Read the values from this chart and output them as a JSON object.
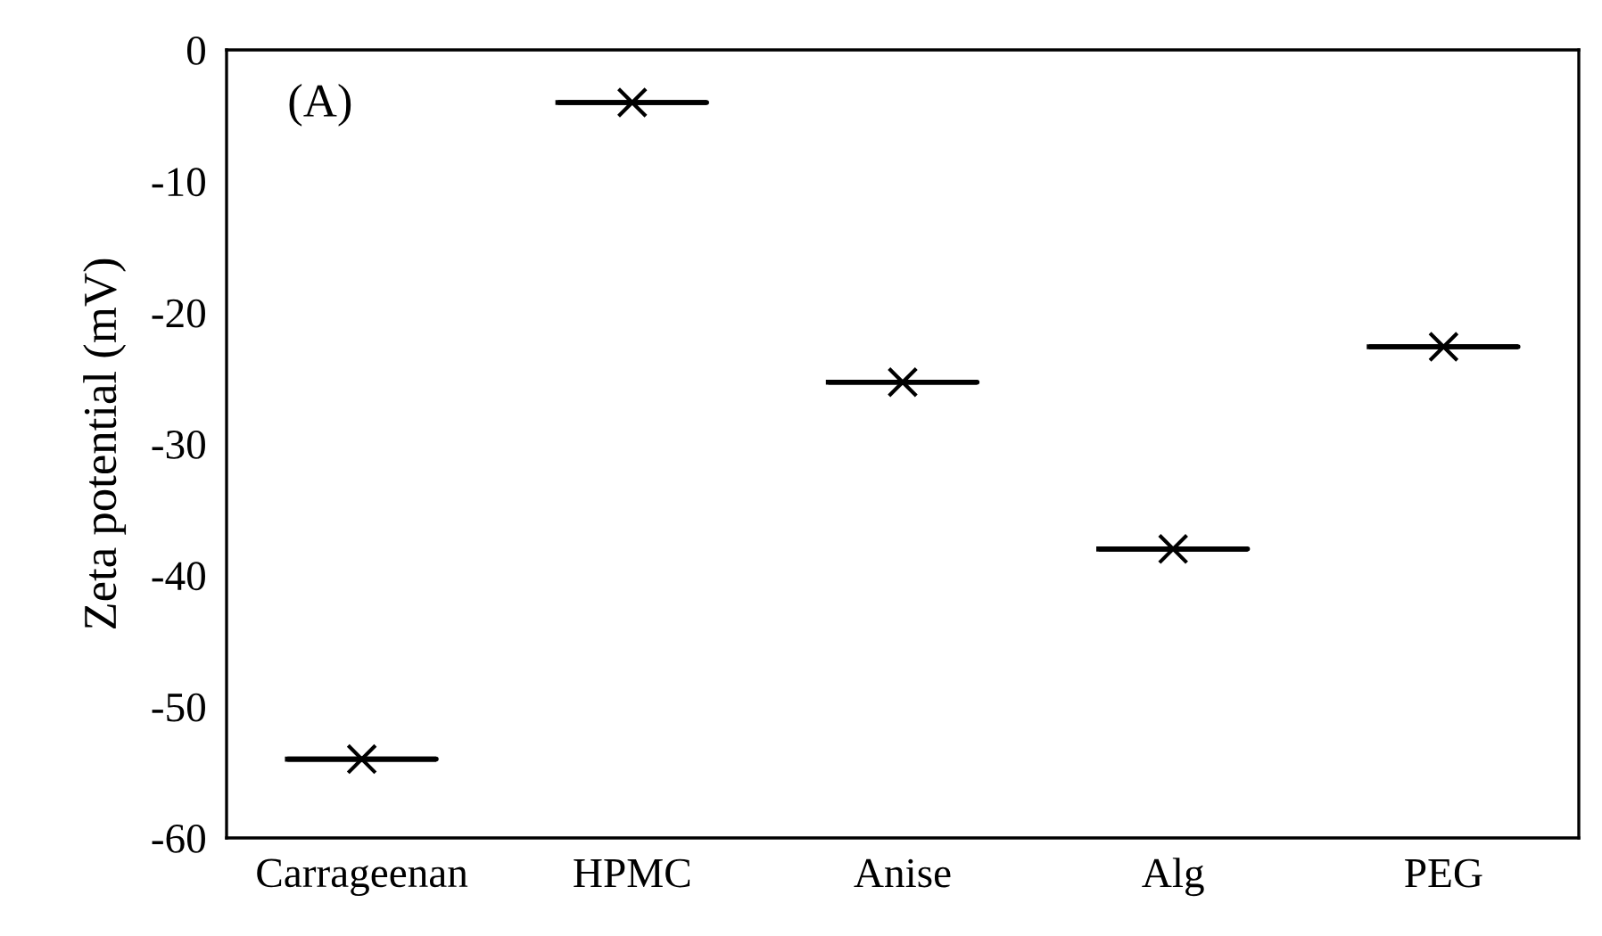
{
  "chart_data": {
    "type": "box",
    "ylabel": "Zeta potential (mV)",
    "annotations": [
      "(A)"
    ],
    "categories": [
      "Carrageenan",
      "HPMC",
      "Anise",
      "Alg",
      "PEG"
    ],
    "boxes": [
      {
        "low": -54,
        "q1": -54,
        "median": -54,
        "q3": -54,
        "high": -54,
        "mean": -54
      },
      {
        "low": -4,
        "q1": -4,
        "median": -4,
        "q3": -4,
        "high": -4,
        "mean": -4
      },
      {
        "low": -25.3,
        "q1": -25.3,
        "median": -25.3,
        "q3": -25.3,
        "high": -25.3,
        "mean": -25.3
      },
      {
        "low": -38,
        "q1": -38,
        "median": -38,
        "q3": -38,
        "high": -38,
        "mean": -38
      },
      {
        "low": -22.6,
        "q1": -22.6,
        "median": -22.6,
        "q3": -22.6,
        "high": -22.6,
        "mean": -22.6
      }
    ],
    "color": "#000000",
    "marker": "cross",
    "ylim": [
      -60,
      0
    ],
    "yticks": [
      -60,
      -50,
      -40,
      -30,
      -20,
      -10,
      0
    ],
    "grid": false
  }
}
